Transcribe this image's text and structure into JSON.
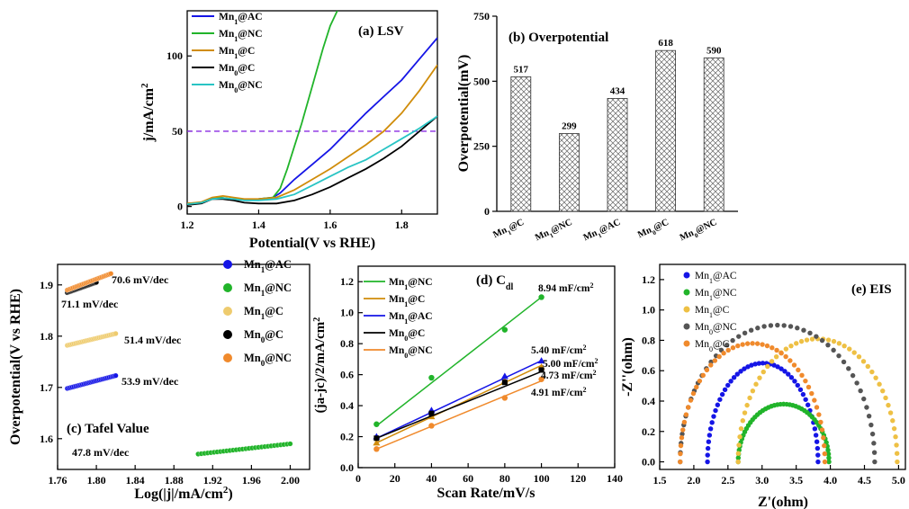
{
  "chart_data": [
    {
      "type": "line",
      "panel": "a",
      "title": "(a) LSV",
      "xlabel": "Potential(V vs RHE)",
      "ylabel": "j/mA/cm",
      "ylabel_sup": "2",
      "xlim": [
        1.2,
        1.9
      ],
      "ylim": [
        -5,
        130
      ],
      "xticks": [
        "1.2",
        "1.4",
        "1.6",
        "1.8"
      ],
      "yticks": [
        "0",
        "50",
        "100"
      ],
      "reference_line": {
        "y": 50,
        "color": "#8a2be2",
        "style": "dashed"
      },
      "legend": [
        {
          "base": "Mn",
          "sub": "1",
          "rest": "@AC",
          "color": "#1515e6"
        },
        {
          "base": "Mn",
          "sub": "1",
          "rest": "@NC",
          "color": "#21b42a"
        },
        {
          "base": "Mn",
          "sub": "1",
          "rest": "@C",
          "color": "#d08c0a"
        },
        {
          "base": "Mn",
          "sub": "0",
          "rest": "@C",
          "color": "#000000"
        },
        {
          "base": "Mn",
          "sub": "0",
          "rest": "@NC",
          "color": "#28c4c4"
        }
      ],
      "series": [
        {
          "name": "Mn1@AC",
          "color": "#1515e6",
          "x": [
            1.2,
            1.24,
            1.27,
            1.29,
            1.32,
            1.36,
            1.4,
            1.44,
            1.46,
            1.5,
            1.55,
            1.6,
            1.65,
            1.7,
            1.75,
            1.8,
            1.85,
            1.9
          ],
          "y": [
            2,
            2.5,
            5,
            6,
            5,
            4.5,
            5,
            6,
            9,
            18,
            28,
            38,
            50,
            62,
            73,
            84,
            98,
            112
          ]
        },
        {
          "name": "Mn1@NC",
          "color": "#21b42a",
          "x": [
            1.2,
            1.24,
            1.27,
            1.29,
            1.32,
            1.36,
            1.4,
            1.44,
            1.46,
            1.48,
            1.5,
            1.52,
            1.55,
            1.58,
            1.6,
            1.62
          ],
          "y": [
            2,
            2.5,
            5,
            6,
            5,
            4.5,
            5,
            6,
            12,
            25,
            40,
            55,
            80,
            105,
            120,
            130
          ]
        },
        {
          "name": "Mn1@C",
          "color": "#d08c0a",
          "x": [
            1.2,
            1.24,
            1.27,
            1.3,
            1.33,
            1.36,
            1.4,
            1.45,
            1.5,
            1.55,
            1.6,
            1.65,
            1.7,
            1.75,
            1.8,
            1.85,
            1.9
          ],
          "y": [
            2,
            3,
            6,
            7,
            6,
            5,
            5,
            6,
            11,
            18,
            25,
            33,
            41,
            50,
            62,
            77,
            94
          ]
        },
        {
          "name": "Mn0@C",
          "color": "#000000",
          "x": [
            1.2,
            1.24,
            1.27,
            1.3,
            1.33,
            1.36,
            1.4,
            1.45,
            1.5,
            1.55,
            1.6,
            1.65,
            1.7,
            1.75,
            1.8,
            1.85,
            1.9
          ],
          "y": [
            1,
            2,
            5,
            5,
            4,
            2.5,
            2,
            2,
            4,
            8,
            13,
            19,
            25,
            32,
            40,
            50,
            60
          ]
        },
        {
          "name": "Mn0@NC",
          "color": "#28c4c4",
          "x": [
            1.2,
            1.24,
            1.27,
            1.3,
            1.33,
            1.36,
            1.4,
            1.45,
            1.5,
            1.55,
            1.6,
            1.65,
            1.7,
            1.75,
            1.8,
            1.85,
            1.9
          ],
          "y": [
            1.5,
            2.5,
            5,
            5.5,
            5,
            4,
            4,
            5,
            8,
            14,
            20,
            26,
            31,
            38,
            45,
            52,
            60
          ]
        }
      ]
    },
    {
      "type": "bar",
      "panel": "b",
      "title": "(b) Overpotential",
      "ylabel": "Overpotential(mV)",
      "ylim": [
        0,
        750
      ],
      "yticks": [
        "0",
        "250",
        "500",
        "750"
      ],
      "categories": [
        {
          "base": "Mn",
          "sub": "1",
          "rest": "@C"
        },
        {
          "base": "Mn",
          "sub": "1",
          "rest": "@NC"
        },
        {
          "base": "Mn",
          "sub": "1",
          "rest": "@AC"
        },
        {
          "base": "Mn",
          "sub": "0",
          "rest": "@C"
        },
        {
          "base": "Mn",
          "sub": "0",
          "rest": "@NC"
        }
      ],
      "values": [
        517,
        299,
        434,
        618,
        590
      ],
      "value_labels": [
        "517",
        "299",
        "434",
        "618",
        "590"
      ]
    },
    {
      "type": "scatter",
      "panel": "c",
      "title": "(c) Tafel Value",
      "xlabel": "Log(|j|/mA/cm",
      "xlabel_sup": "2",
      "xlabel_end": ")",
      "ylabel": "Overpotential(V vs RHE)",
      "xlim": [
        1.76,
        2.02
      ],
      "ylim": [
        1.54,
        1.94
      ],
      "xticks": [
        "1.76",
        "1.80",
        "1.84",
        "1.88",
        "1.92",
        "1.96",
        "2.00"
      ],
      "yticks": [
        "1.6",
        "1.7",
        "1.8",
        "1.9"
      ],
      "legend": [
        {
          "base": "Mn",
          "sub": "1",
          "rest": "@AC",
          "color": "#1515e6"
        },
        {
          "base": "Mn",
          "sub": "1",
          "rest": "@NC",
          "color": "#21b42a"
        },
        {
          "base": "Mn",
          "sub": "1",
          "rest": "@C",
          "color": "#eecb6e"
        },
        {
          "base": "Mn",
          "sub": "0",
          "rest": "@C",
          "color": "#000000"
        },
        {
          "base": "Mn",
          "sub": "0",
          "rest": "@NC",
          "color": "#f08a2c"
        }
      ],
      "series": [
        {
          "name": "Mn1@AC",
          "color": "#1515e6",
          "x_range": [
            1.77,
            1.82
          ],
          "y_range": [
            1.698,
            1.723
          ],
          "annotation": "53.9 mV/dec"
        },
        {
          "name": "Mn1@NC",
          "color": "#21b42a",
          "x_range": [
            1.905,
            2.0
          ],
          "y_range": [
            1.57,
            1.59
          ],
          "annotation": "47.8 mV/dec"
        },
        {
          "name": "Mn1@C",
          "color": "#eecb6e",
          "x_range": [
            1.77,
            1.82
          ],
          "y_range": [
            1.782,
            1.805
          ],
          "annotation": "51.4 mV/dec"
        },
        {
          "name": "Mn0@C",
          "color": "#000000",
          "x_range": [
            1.77,
            1.8
          ],
          "y_range": [
            1.885,
            1.905
          ],
          "annotation": "71.1 mV/dec"
        },
        {
          "name": "Mn0@NC",
          "color": "#f08a2c",
          "x_range": [
            1.77,
            1.815
          ],
          "y_range": [
            1.89,
            1.922
          ],
          "annotation": "70.6 mV/dec"
        }
      ]
    },
    {
      "type": "scatter",
      "panel": "d",
      "title": "(d) C",
      "title_sub": "dl",
      "xlabel": "Scan Rate/mV/s",
      "ylabel": "(ja-jc)/2/mA/cm",
      "xlim": [
        0,
        140
      ],
      "ylim": [
        0,
        1.3
      ],
      "xticks": [
        "0",
        "20",
        "40",
        "60",
        "80",
        "100",
        "120",
        "140"
      ],
      "yticks": [
        "0.0",
        "0.2",
        "0.4",
        "0.6",
        "0.8",
        "1.0",
        "1.2"
      ],
      "legend": [
        {
          "base": "Mn",
          "sub": "1",
          "rest": "@NC",
          "color": "#21b42a"
        },
        {
          "base": "Mn",
          "sub": "1",
          "rest": "@C",
          "color": "#d08c0a"
        },
        {
          "base": "Mn",
          "sub": "1",
          "rest": "@AC",
          "color": "#1515e6"
        },
        {
          "base": "Mn",
          "sub": "0",
          "rest": "@C",
          "color": "#000000"
        },
        {
          "base": "Mn",
          "sub": "0",
          "rest": "@NC",
          "color": "#f08a2c"
        }
      ],
      "series": [
        {
          "name": "Mn1@NC",
          "color": "#21b42a",
          "marker": "circle",
          "x": [
            10,
            40,
            80,
            100
          ],
          "y": [
            0.28,
            0.58,
            0.89,
            1.1
          ],
          "fit": [
            0.27,
            1.1
          ],
          "annotation": "8.94 mF/cm"
        },
        {
          "name": "Mn1@C",
          "color": "#d08c0a",
          "marker": "triangle",
          "x": [
            10,
            40,
            80,
            100
          ],
          "y": [
            0.16,
            0.33,
            0.56,
            0.65
          ],
          "fit": [
            0.16,
            0.66
          ],
          "annotation": "5.00 mF/cm"
        },
        {
          "name": "Mn1@AC",
          "color": "#1515e6",
          "marker": "triangle",
          "x": [
            10,
            40,
            80,
            100
          ],
          "y": [
            0.2,
            0.37,
            0.59,
            0.69
          ],
          "fit": [
            0.19,
            0.69
          ],
          "annotation": "5.40 mF/cm"
        },
        {
          "name": "Mn0@C",
          "color": "#000000",
          "marker": "square",
          "x": [
            10,
            40,
            80,
            100
          ],
          "y": [
            0.19,
            0.35,
            0.55,
            0.63
          ],
          "fit": [
            0.19,
            0.62
          ],
          "annotation": "4.73 mF/cm"
        },
        {
          "name": "Mn0@NC",
          "color": "#f08a2c",
          "marker": "circle",
          "x": [
            10,
            40,
            80,
            100
          ],
          "y": [
            0.12,
            0.27,
            0.45,
            0.57
          ],
          "fit": [
            0.12,
            0.56
          ],
          "annotation": "4.91 mF/cm"
        }
      ]
    },
    {
      "type": "scatter",
      "panel": "e",
      "title": "(e) EIS",
      "xlabel": "Z'(ohm)",
      "ylabel": "-Z''(ohm)",
      "xlim": [
        1.5,
        5.1
      ],
      "ylim": [
        -0.05,
        1.3
      ],
      "xticks": [
        "1.5",
        "2.0",
        "2.5",
        "3.0",
        "3.5",
        "4.0",
        "4.5",
        "5.0"
      ],
      "yticks": [
        "0.0",
        "0.2",
        "0.4",
        "0.6",
        "0.8",
        "1.0",
        "1.2"
      ],
      "legend": [
        {
          "base": "Mn",
          "sub": "1",
          "rest": "@AC",
          "color": "#1515e6"
        },
        {
          "base": "Mn",
          "sub": "1",
          "rest": "@NC",
          "color": "#21b42a"
        },
        {
          "base": "Mn",
          "sub": "1",
          "rest": "@C",
          "color": "#eec044"
        },
        {
          "base": "Mn",
          "sub": "0",
          "rest": "@NC",
          "color": "#555555"
        },
        {
          "base": "Mn",
          "sub": "0",
          "rest": "@C",
          "color": "#f08a2c"
        }
      ],
      "series": [
        {
          "name": "Mn1@AC",
          "color": "#1515e6",
          "arc": {
            "start": 2.2,
            "end": 3.82,
            "peak": 0.65
          }
        },
        {
          "name": "Mn1@NC",
          "color": "#21b42a",
          "arc": {
            "start": 2.65,
            "end": 3.98,
            "peak": 0.38
          }
        },
        {
          "name": "Mn1@C",
          "color": "#eec044",
          "arc": {
            "start": 2.65,
            "end": 4.98,
            "peak": 0.81
          }
        },
        {
          "name": "Mn0@NC",
          "color": "#555555",
          "arc": {
            "start": 1.8,
            "end": 4.65,
            "peak": 0.9
          }
        },
        {
          "name": "Mn0@C",
          "color": "#f08a2c",
          "arc": {
            "start": 1.8,
            "end": 3.92,
            "peak": 0.78
          }
        }
      ]
    }
  ]
}
